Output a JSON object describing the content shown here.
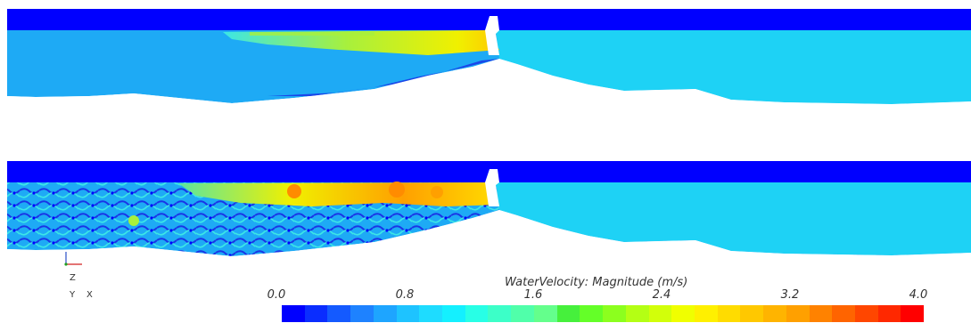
{
  "triad": {
    "z_label": "Z",
    "y_label": "Y",
    "x_label": "X"
  },
  "colorbar": {
    "title": "WaterVelocity: Magnitude (m/s)",
    "ticks": [
      "0.0",
      "0.8",
      "1.6",
      "2.4",
      "3.2",
      "4.0"
    ],
    "range": [
      0.0,
      4.0
    ],
    "colors": [
      "#0000ff",
      "#0a2dff",
      "#145aff",
      "#1e82ff",
      "#1ea5ff",
      "#1ec3ff",
      "#1edcff",
      "#14f0ff",
      "#28ffe6",
      "#3cffc8",
      "#50ffaa",
      "#64ff8c",
      "#46f03c",
      "#64ff28",
      "#8cff1e",
      "#b4ff14",
      "#d2ff0a",
      "#f0ff00",
      "#fff000",
      "#ffdc00",
      "#ffc800",
      "#ffb400",
      "#ffa000",
      "#ff8200",
      "#ff6400",
      "#ff4600",
      "#ff2800",
      "#ff0000"
    ]
  },
  "palette": {
    "sky": "#0000ff",
    "dark_blue": "#1a35e6",
    "blue": "#2a78f0",
    "light_blue": "#1eaaf5",
    "cyan": "#1ed2f5",
    "aqua": "#3ce6e6",
    "green": "#5ae6a0",
    "lime": "#a8f03c",
    "yellow": "#f0f000",
    "orange": "#ff8c00",
    "red": "#ff3c00",
    "terrain": "#ffffff",
    "structure": "#ffffff"
  }
}
